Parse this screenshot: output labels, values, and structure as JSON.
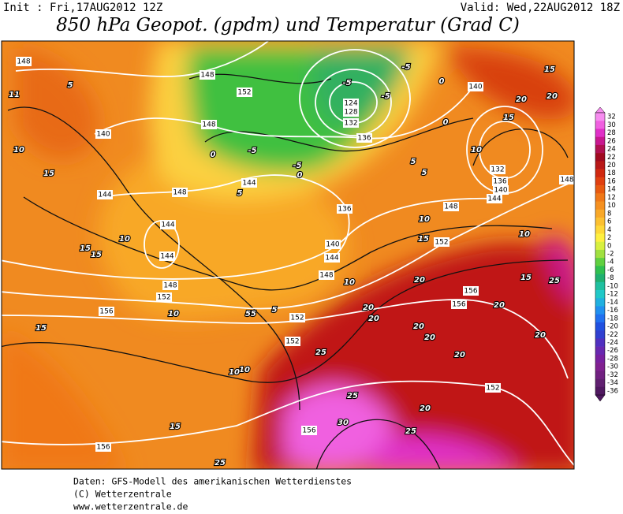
{
  "header": {
    "init": "Init : Fri,17AUG2012 12Z",
    "valid": "Valid: Wed,22AUG2012 18Z",
    "title": "850 hPa Geopot. (gpdm) und Temperatur (Grad C)"
  },
  "colorbar": {
    "levels": [
      32,
      30,
      28,
      26,
      24,
      22,
      20,
      18,
      16,
      14,
      12,
      10,
      8,
      6,
      4,
      2,
      0,
      -2,
      -4,
      -6,
      -8,
      -10,
      -12,
      -14,
      -16,
      -18,
      -20,
      -22,
      -24,
      -26,
      -28,
      -30,
      -32,
      -34,
      -36
    ],
    "colors": [
      "#f78cf0",
      "#f060e0",
      "#e030c8",
      "#c81890",
      "#b01050",
      "#a00a20",
      "#b81818",
      "#d02810",
      "#e04010",
      "#e85a10",
      "#f07818",
      "#f59020",
      "#f8a828",
      "#fcc030",
      "#ffd838",
      "#fff040",
      "#d8f040",
      "#a0e040",
      "#60d040",
      "#30c050",
      "#20b070",
      "#20c0a0",
      "#20c8c8",
      "#20b0e0",
      "#2090f0",
      "#2070f0",
      "#2050e0",
      "#3040d0",
      "#5030c0",
      "#6828b0",
      "#7820a0",
      "#802090",
      "#702080",
      "#602070",
      "#501860"
    ]
  },
  "map": {
    "geopotential_labels": [
      148,
      148,
      152,
      148,
      140,
      144,
      148,
      144,
      136,
      144,
      144,
      148,
      152,
      156,
      140,
      144,
      148,
      152,
      152,
      136,
      124,
      128,
      132,
      140,
      132,
      136,
      140,
      144,
      148,
      152,
      156,
      156,
      152,
      156,
      156,
      148
    ],
    "temperature_labels": [
      5,
      10,
      15,
      11,
      10,
      15,
      15,
      15,
      10,
      5,
      55,
      10,
      10,
      15,
      25,
      25,
      25,
      30,
      25,
      20,
      20,
      20,
      20,
      20,
      20,
      20,
      20,
      20,
      15,
      25,
      10,
      15,
      10,
      10,
      5,
      5,
      10,
      15,
      20,
      20,
      15,
      -5,
      -5,
      -5,
      0,
      0,
      -5,
      0,
      -5,
      0,
      5
    ]
  },
  "footer": {
    "line1": "Daten: GFS-Modell des amerikanischen Wetterdienstes",
    "line2": "(C) Wetterzentrale",
    "line3": "www.wetterzentrale.de"
  }
}
